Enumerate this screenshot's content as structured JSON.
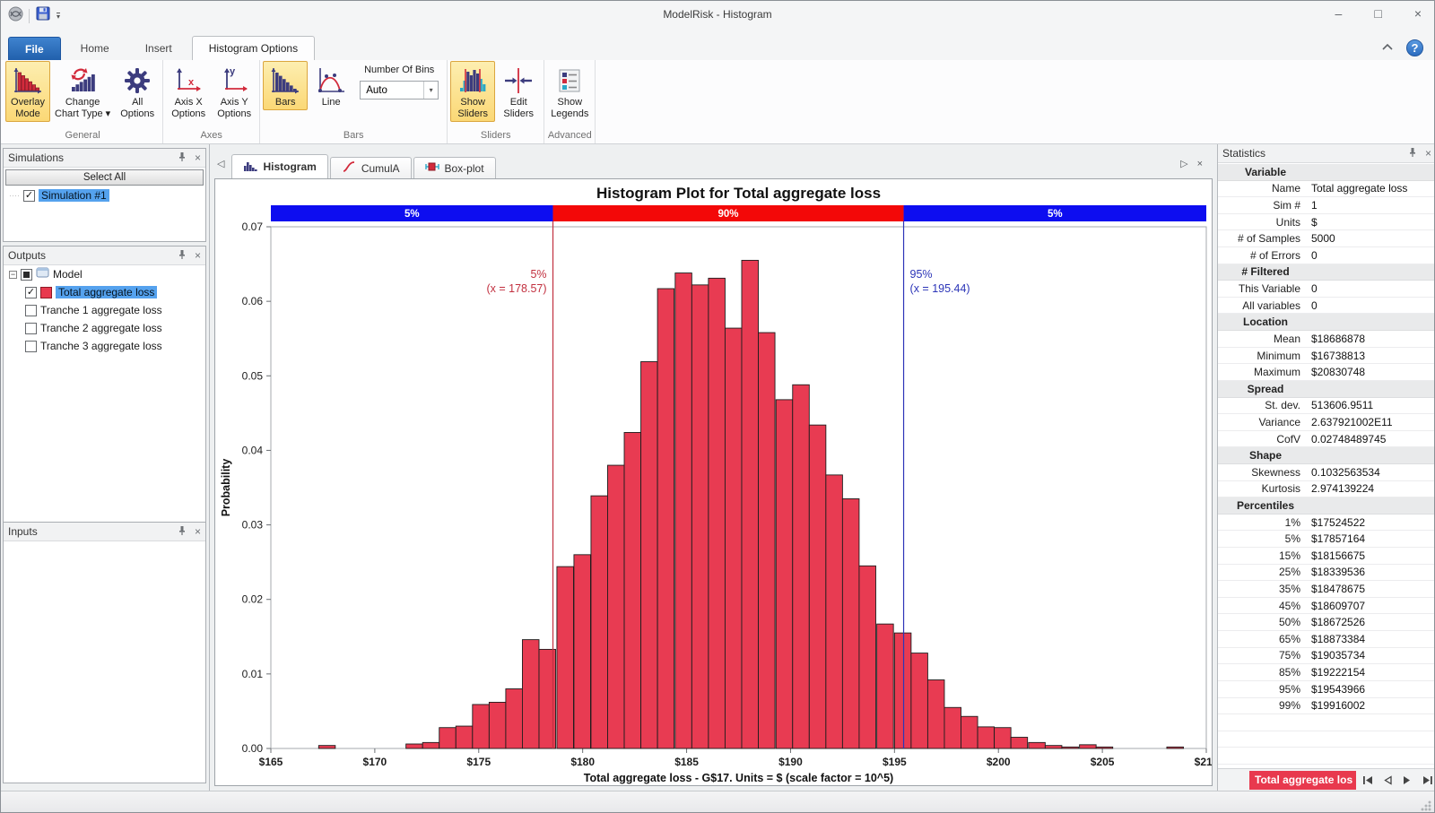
{
  "window": {
    "title": "ModelRisk - Histogram"
  },
  "icons": {
    "minimize": "–",
    "maximize": "□",
    "close": "×",
    "dropdown": "▾",
    "check": "✓",
    "collapse": "−",
    "left_small": "◀",
    "right_small": "▶",
    "tab_left": "◁",
    "tab_right": "▷",
    "help": "?"
  },
  "ribbon": {
    "tabs": [
      {
        "label": "File",
        "style": "file"
      },
      {
        "label": "Home",
        "style": "normal"
      },
      {
        "label": "Insert",
        "style": "normal"
      },
      {
        "label": "Histogram Options",
        "style": "active"
      }
    ],
    "groups": [
      {
        "label": "General",
        "buttons": [
          {
            "lines": [
              "Overlay",
              "Mode"
            ],
            "icon": "overlay-mode-icon",
            "selected": true
          },
          {
            "lines": [
              "Change",
              "Chart Type ▾"
            ],
            "icon": "change-chart-type-icon",
            "selected": false
          },
          {
            "lines": [
              "All",
              "Options"
            ],
            "icon": "gear-icon",
            "selected": false
          }
        ]
      },
      {
        "label": "Axes",
        "buttons": [
          {
            "lines": [
              "Axis X",
              "Options"
            ],
            "icon": "axis-x-icon",
            "selected": false
          },
          {
            "lines": [
              "Axis Y",
              "Options"
            ],
            "icon": "axis-y-icon",
            "selected": false
          }
        ]
      },
      {
        "label": "Bars",
        "buttons": [
          {
            "lines": [
              "Bars"
            ],
            "icon": "bars-icon",
            "selected": true
          },
          {
            "lines": [
              "Line"
            ],
            "icon": "line-icon",
            "selected": false
          }
        ],
        "field": {
          "label": "Number Of Bins",
          "value": "Auto"
        }
      },
      {
        "label": "Sliders",
        "buttons": [
          {
            "lines": [
              "Show",
              "Sliders"
            ],
            "icon": "show-sliders-icon",
            "selected": true
          },
          {
            "lines": [
              "Edit",
              "Sliders"
            ],
            "icon": "edit-sliders-icon",
            "selected": false
          }
        ]
      },
      {
        "label": "Advanced",
        "buttons": [
          {
            "lines": [
              "Show",
              "Legends"
            ],
            "icon": "show-legends-icon",
            "selected": false
          }
        ]
      }
    ]
  },
  "sidebar": {
    "simulations": {
      "title": "Simulations",
      "select_all_label": "Select All",
      "items": [
        {
          "label": "Simulation #1",
          "checked": true,
          "selected": true
        }
      ]
    },
    "outputs": {
      "title": "Outputs",
      "root_label": "Model",
      "items": [
        {
          "label": "Total aggregate loss",
          "checked": true,
          "selected": true,
          "swatch": true
        },
        {
          "label": "Tranche 1 aggregate loss",
          "checked": false,
          "selected": false,
          "swatch": false
        },
        {
          "label": "Tranche 2 aggregate loss",
          "checked": false,
          "selected": false,
          "swatch": false
        },
        {
          "label": "Tranche 3 aggregate loss",
          "checked": false,
          "selected": false,
          "swatch": false
        }
      ]
    },
    "inputs": {
      "title": "Inputs"
    }
  },
  "chart_tabs": [
    {
      "label": "Histogram",
      "icon": "histogram-tab-icon",
      "active": true
    },
    {
      "label": "CumulA",
      "icon": "cumul-tab-icon",
      "active": false
    },
    {
      "label": "Box-plot",
      "icon": "boxplot-tab-icon",
      "active": false
    }
  ],
  "chart_data": {
    "type": "bar",
    "title": "Histogram Plot for Total aggregate loss",
    "xlabel": "Total aggregate loss - G$17.  Units = $ (scale factor = 10^5)",
    "ylabel": "Probability",
    "xlim": [
      165,
      210
    ],
    "ylim": [
      0,
      0.07
    ],
    "x_tick_step": 5,
    "x_tick_prefix": "$",
    "y_tick_step": 0.01,
    "grid": false,
    "bar_color": "#e83b52",
    "bar_edge_color": "#1d1d1d",
    "bin_width": 0.8,
    "bars": [
      [
        167.3,
        0.0004
      ],
      [
        171.5,
        0.0006
      ],
      [
        172.3,
        0.0008
      ],
      [
        173.1,
        0.0028
      ],
      [
        173.9,
        0.003
      ],
      [
        174.7,
        0.0059
      ],
      [
        175.5,
        0.0062
      ],
      [
        176.3,
        0.008
      ],
      [
        177.1,
        0.0146
      ],
      [
        177.9,
        0.0133
      ],
      [
        178.76,
        0.0244
      ],
      [
        179.58,
        0.026
      ],
      [
        180.4,
        0.0339
      ],
      [
        181.2,
        0.038
      ],
      [
        182.0,
        0.0424
      ],
      [
        182.8,
        0.0519
      ],
      [
        183.6,
        0.0617
      ],
      [
        184.45,
        0.0638
      ],
      [
        185.25,
        0.0622
      ],
      [
        186.05,
        0.0631
      ],
      [
        186.85,
        0.0564
      ],
      [
        187.65,
        0.0655
      ],
      [
        188.45,
        0.0558
      ],
      [
        189.3,
        0.0468
      ],
      [
        190.1,
        0.0488
      ],
      [
        190.9,
        0.0434
      ],
      [
        191.7,
        0.0367
      ],
      [
        192.5,
        0.0335
      ],
      [
        193.3,
        0.0245
      ],
      [
        194.15,
        0.0167
      ],
      [
        195.0,
        0.0155
      ],
      [
        195.8,
        0.0128
      ],
      [
        196.6,
        0.0092
      ],
      [
        197.4,
        0.0055
      ],
      [
        198.2,
        0.0043
      ],
      [
        199.0,
        0.0029
      ],
      [
        199.8,
        0.0028
      ],
      [
        200.6,
        0.0015
      ],
      [
        201.45,
        0.0008
      ],
      [
        202.25,
        0.0004
      ],
      [
        203.05,
        0.0002
      ],
      [
        203.9,
        0.0005
      ],
      [
        204.7,
        0.0002
      ],
      [
        208.1,
        0.0002
      ]
    ],
    "sliders": {
      "low": {
        "x": 178.57,
        "label": "5%",
        "annotation": "(x = 178.57)",
        "color": "#c2303f"
      },
      "high": {
        "x": 195.44,
        "label": "95%",
        "annotation": "(x = 195.44)",
        "color": "#2c35b8"
      }
    },
    "bands": [
      {
        "label": "5%",
        "from": 165,
        "to": 178.57,
        "color": "#0d0df0"
      },
      {
        "label": "90%",
        "from": 178.57,
        "to": 195.44,
        "color": "#f30808"
      },
      {
        "label": "5%",
        "from": 195.44,
        "to": 210,
        "color": "#0d0df0"
      }
    ],
    "legend": null
  },
  "statistics": {
    "title": "Statistics",
    "rows": [
      {
        "header": "Variable"
      },
      {
        "label": "Name",
        "value": "Total aggregate loss"
      },
      {
        "label": "Sim #",
        "value": "1"
      },
      {
        "label": "Units",
        "value": "$"
      },
      {
        "label": "# of Samples",
        "value": "5000"
      },
      {
        "label": "# of Errors",
        "value": "0"
      },
      {
        "header": "# Filtered"
      },
      {
        "label": "This Variable",
        "value": "0"
      },
      {
        "label": "All variables",
        "value": "0"
      },
      {
        "header": "Location"
      },
      {
        "label": "Mean",
        "value": "$18686878"
      },
      {
        "label": "Minimum",
        "value": "$16738813"
      },
      {
        "label": "Maximum",
        "value": "$20830748"
      },
      {
        "header": "Spread"
      },
      {
        "label": "St. dev.",
        "value": "513606.9511"
      },
      {
        "label": "Variance",
        "value": "2.637921002E11"
      },
      {
        "label": "CofV",
        "value": "0.02748489745"
      },
      {
        "header": "Shape"
      },
      {
        "label": "Skewness",
        "value": "0.1032563534"
      },
      {
        "label": "Kurtosis",
        "value": "2.974139224"
      },
      {
        "header": "Percentiles"
      },
      {
        "label": "1%",
        "value": "$17524522"
      },
      {
        "label": "5%",
        "value": "$17857164"
      },
      {
        "label": "15%",
        "value": "$18156675"
      },
      {
        "label": "25%",
        "value": "$18339536"
      },
      {
        "label": "35%",
        "value": "$18478675"
      },
      {
        "label": "45%",
        "value": "$18609707"
      },
      {
        "label": "50%",
        "value": "$18672526"
      },
      {
        "label": "65%",
        "value": "$18873384"
      },
      {
        "label": "75%",
        "value": "$19035734"
      },
      {
        "label": "85%",
        "value": "$19222154"
      },
      {
        "label": "95%",
        "value": "$19543966"
      },
      {
        "label": "99%",
        "value": "$19916002"
      },
      {
        "label": "",
        "value": ""
      },
      {
        "label": "",
        "value": ""
      },
      {
        "label": "",
        "value": ""
      }
    ],
    "bottom_tab": "Total aggregate los"
  }
}
